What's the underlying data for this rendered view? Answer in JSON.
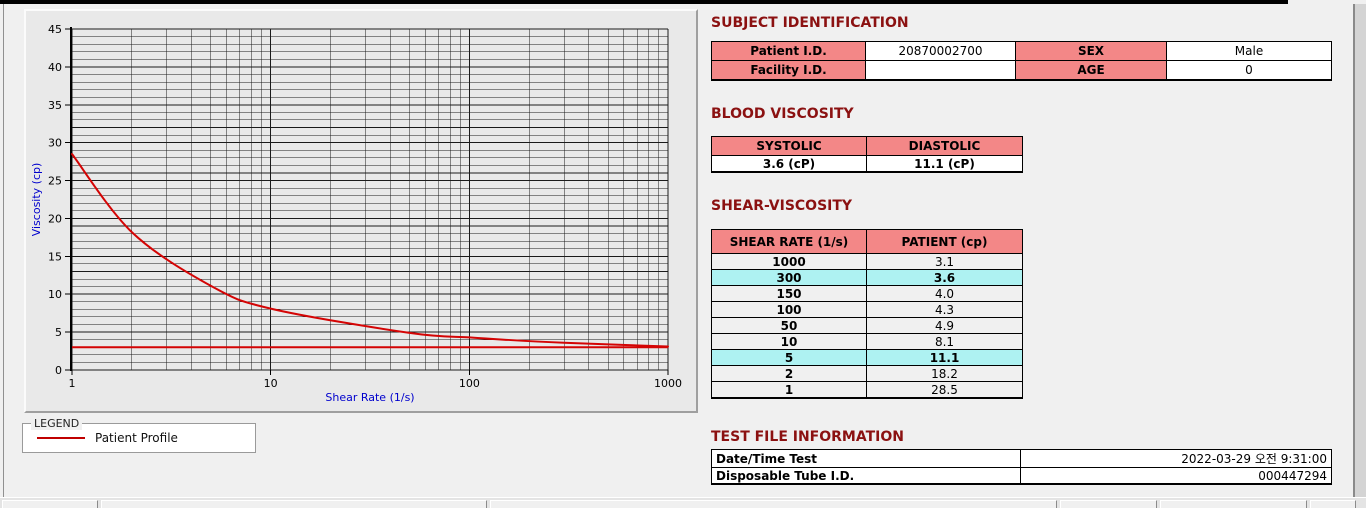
{
  "legend": {
    "title": "LEGEND",
    "series_label": "Patient Profile"
  },
  "chart_data": {
    "type": "line",
    "title": "",
    "xlabel": "Shear Rate (1/s)",
    "ylabel": "Viscosity (cp)",
    "x_scale": "log",
    "xlim": [
      1,
      1000
    ],
    "ylim": [
      0,
      45
    ],
    "x_tick_labels": [
      "1",
      "10",
      "100",
      "1000"
    ],
    "y_major_ticks": [
      0,
      5,
      10,
      15,
      20,
      25,
      30,
      35,
      40,
      45
    ],
    "grid": "minor horizontal every 1 cp, log minor verticals",
    "legend_position": "below-left fieldset",
    "series": [
      {
        "name": "Patient Profile",
        "color": "#d40404",
        "points": [
          [
            1,
            28.5
          ],
          [
            2,
            18.2
          ],
          [
            5,
            11.1
          ],
          [
            10,
            8.1
          ],
          [
            50,
            4.9
          ],
          [
            100,
            4.3
          ],
          [
            150,
            4.0
          ],
          [
            300,
            3.6
          ],
          [
            1000,
            3.1
          ]
        ]
      }
    ],
    "reference_line": {
      "y": 3.0,
      "color": "#d40404",
      "x_from": 1,
      "x_to": 1000
    }
  },
  "subject_identification": {
    "title": "SUBJECT IDENTIFICATION",
    "rows": [
      {
        "label1": "Patient I.D.",
        "value1": "20870002700",
        "label2": "SEX",
        "value2": "Male"
      },
      {
        "label1": "Facility I.D.",
        "value1": "",
        "label2": "AGE",
        "value2": "0"
      }
    ]
  },
  "blood_viscosity": {
    "title": "BLOOD VISCOSITY",
    "headers": [
      "SYSTOLIC",
      "DIASTOLIC"
    ],
    "values": [
      "3.6 (cP)",
      "11.1 (cP)"
    ]
  },
  "shear_viscosity": {
    "title": "SHEAR-VISCOSITY",
    "headers": [
      "SHEAR RATE (1/s)",
      "PATIENT (cp)"
    ],
    "rows": [
      {
        "rate": "1000",
        "value": "3.1",
        "highlight": false
      },
      {
        "rate": "300",
        "value": "3.6",
        "highlight": true
      },
      {
        "rate": "150",
        "value": "4.0",
        "highlight": false
      },
      {
        "rate": "100",
        "value": "4.3",
        "highlight": false
      },
      {
        "rate": "50",
        "value": "4.9",
        "highlight": false
      },
      {
        "rate": "10",
        "value": "8.1",
        "highlight": false
      },
      {
        "rate": "5",
        "value": "11.1",
        "highlight": true
      },
      {
        "rate": "2",
        "value": "18.2",
        "highlight": false
      },
      {
        "rate": "1",
        "value": "28.5",
        "highlight": false
      }
    ]
  },
  "test_file_information": {
    "title": "TEST FILE INFORMATION",
    "rows": [
      {
        "label": "Date/Time Test",
        "value": "2022-03-29   오전 9:31:00"
      },
      {
        "label": "Disposable Tube I.D.",
        "value": "000447294"
      }
    ]
  },
  "colors": {
    "header_pink": "#f38787",
    "highlight_cyan": "#aef2f2",
    "title_dark_red": "#8b1111",
    "axis_label_blue": "#0000cd",
    "series_red": "#d40404",
    "plot_background": "#e9e9e9"
  }
}
